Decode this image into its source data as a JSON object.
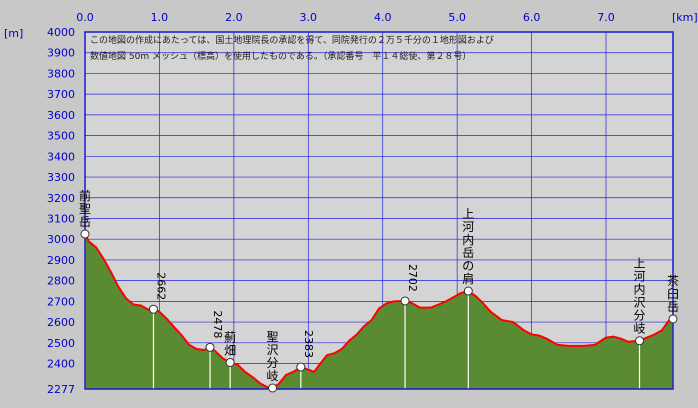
{
  "chart_data": {
    "type": "area",
    "xunit": "[km]",
    "yunit": "[m]",
    "xlim": [
      0,
      7.9
    ],
    "ylim": [
      2277,
      4000
    ],
    "xticks": [
      0,
      1,
      2,
      3,
      4,
      5,
      6,
      7
    ],
    "xtick_labels": [
      "0.0",
      "1.0",
      "2.0",
      "3.0",
      "4.0",
      "5.0",
      "6.0",
      "7.0"
    ],
    "yticks": [
      2277,
      2400,
      2500,
      2600,
      2700,
      2800,
      2900,
      3000,
      3100,
      3200,
      3300,
      3400,
      3500,
      3600,
      3700,
      3800,
      3900,
      4000
    ],
    "grid": true,
    "notice_lines": [
      "この地図の作成にあたっては、国土地理院長の承認を得て、同院発行の２万５千分の１地形図および",
      "数値地図 50m メッシュ（標高）を使用したものである。（承認番号　平１４総使、第２８号）"
    ],
    "colors": {
      "plot_bg": "#d4d4d4",
      "fill": "#5a8a32",
      "line": "#ff0000",
      "grid": "#2222dd",
      "axis_text": "#0000cc",
      "frame": "#1a1acc"
    },
    "profile": [
      [
        0.0,
        3025
      ],
      [
        0.05,
        2990
      ],
      [
        0.15,
        2960
      ],
      [
        0.25,
        2905
      ],
      [
        0.35,
        2840
      ],
      [
        0.45,
        2770
      ],
      [
        0.55,
        2715
      ],
      [
        0.65,
        2685
      ],
      [
        0.75,
        2680
      ],
      [
        0.85,
        2660
      ],
      [
        0.92,
        2662
      ],
      [
        1.0,
        2650
      ],
      [
        1.1,
        2615
      ],
      [
        1.2,
        2575
      ],
      [
        1.3,
        2535
      ],
      [
        1.4,
        2490
      ],
      [
        1.5,
        2470
      ],
      [
        1.6,
        2465
      ],
      [
        1.68,
        2478
      ],
      [
        1.75,
        2460
      ],
      [
        1.85,
        2425
      ],
      [
        1.95,
        2405
      ],
      [
        2.05,
        2395
      ],
      [
        2.15,
        2360
      ],
      [
        2.25,
        2335
      ],
      [
        2.35,
        2305
      ],
      [
        2.45,
        2285
      ],
      [
        2.52,
        2282
      ],
      [
        2.6,
        2300
      ],
      [
        2.7,
        2345
      ],
      [
        2.8,
        2360
      ],
      [
        2.9,
        2383
      ],
      [
        3.0,
        2370
      ],
      [
        3.08,
        2360
      ],
      [
        3.15,
        2395
      ],
      [
        3.25,
        2440
      ],
      [
        3.35,
        2450
      ],
      [
        3.45,
        2470
      ],
      [
        3.55,
        2510
      ],
      [
        3.65,
        2540
      ],
      [
        3.75,
        2580
      ],
      [
        3.85,
        2610
      ],
      [
        3.95,
        2665
      ],
      [
        4.05,
        2690
      ],
      [
        4.15,
        2700
      ],
      [
        4.3,
        2702
      ],
      [
        4.4,
        2690
      ],
      [
        4.5,
        2670
      ],
      [
        4.65,
        2670
      ],
      [
        4.75,
        2685
      ],
      [
        4.85,
        2700
      ],
      [
        4.95,
        2720
      ],
      [
        5.05,
        2740
      ],
      [
        5.15,
        2750
      ],
      [
        5.25,
        2725
      ],
      [
        5.35,
        2690
      ],
      [
        5.45,
        2650
      ],
      [
        5.6,
        2610
      ],
      [
        5.75,
        2600
      ],
      [
        5.9,
        2560
      ],
      [
        6.0,
        2540
      ],
      [
        6.1,
        2535
      ],
      [
        6.2,
        2520
      ],
      [
        6.35,
        2490
      ],
      [
        6.5,
        2485
      ],
      [
        6.7,
        2485
      ],
      [
        6.85,
        2490
      ],
      [
        7.0,
        2525
      ],
      [
        7.1,
        2530
      ],
      [
        7.2,
        2520
      ],
      [
        7.3,
        2505
      ],
      [
        7.45,
        2510
      ],
      [
        7.55,
        2525
      ],
      [
        7.65,
        2540
      ],
      [
        7.75,
        2560
      ],
      [
        7.85,
        2610
      ],
      [
        7.9,
        2615
      ]
    ],
    "annotations": [
      {
        "x": 0.0,
        "y": 3025,
        "label": "前聖岳",
        "style": "vertical",
        "side": "above"
      },
      {
        "x": 0.92,
        "y": 2662,
        "label": "2662",
        "style": "rotated"
      },
      {
        "x": 1.68,
        "y": 2478,
        "label": "2478",
        "style": "rotated"
      },
      {
        "x": 1.95,
        "y": 2405,
        "label": "薊畑",
        "style": "vertical",
        "side": "above"
      },
      {
        "x": 2.52,
        "y": 2282,
        "label": "聖沢分岐",
        "style": "vertical",
        "side": "above"
      },
      {
        "x": 2.9,
        "y": 2383,
        "label": "2383",
        "style": "rotated"
      },
      {
        "x": 4.3,
        "y": 2702,
        "label": "2702",
        "style": "rotated"
      },
      {
        "x": 5.15,
        "y": 2750,
        "label": "上河内岳の肩",
        "style": "vertical",
        "side": "above"
      },
      {
        "x": 7.45,
        "y": 2510,
        "label": "上河内沢分岐",
        "style": "vertical",
        "side": "above"
      },
      {
        "x": 7.9,
        "y": 2615,
        "label": "茶臼岳",
        "style": "vertical",
        "side": "above"
      }
    ]
  }
}
